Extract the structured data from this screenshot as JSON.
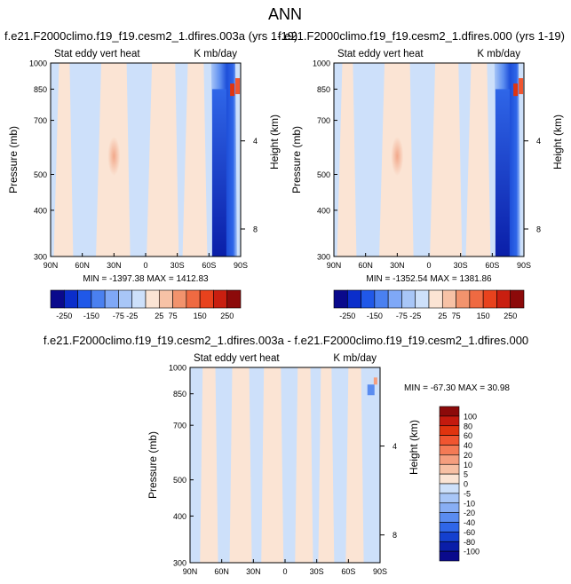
{
  "figure": {
    "title": "ANN"
  },
  "chart_data": [
    {
      "type": "heatmap",
      "title": "f.e21.F2000climo.f19_f19.cesm2_1.dfires.003a (yrs 1-19)",
      "left_subtitle": "Stat eddy vert heat",
      "right_subtitle": "K mb/day",
      "xlabel": "",
      "ylabel": "Pressure (mb)",
      "y2label": "Height (km)",
      "x_ticks": [
        "90N",
        "60N",
        "30N",
        "0",
        "30S",
        "60S",
        "90S"
      ],
      "y_ticks": [
        "300",
        "400",
        "500",
        "700",
        "850",
        "1000"
      ],
      "y2_ticks": [
        "8",
        "4"
      ],
      "x_range": [
        90,
        -90
      ],
      "y_range": [
        1000,
        300
      ],
      "y_scale": "log",
      "min": -1397.38,
      "max": 1412.83,
      "min_label": "MIN = -1397.38",
      "max_label": "MAX = 1412.83",
      "colorbar_orientation": "horizontal",
      "colorbar_labels": [
        "-250",
        "-150",
        "-75",
        "-25",
        "25",
        "75",
        "150",
        "250"
      ],
      "colorbar_colors": [
        "#0a0a8c",
        "#0b2ecb",
        "#2058e8",
        "#4a80f0",
        "#7fa8f7",
        "#a8c6f7",
        "#cde0fa",
        "#fbe4d4",
        "#f7c2a6",
        "#f2936d",
        "#ef6a42",
        "#e8421d",
        "#c91f10",
        "#8c0a0a"
      ],
      "field": {
        "background": "light-blue",
        "features": [
          "warm bands over tropics",
          "peak near 30N mid-troposphere",
          "strong cold core 60S-90S",
          "warm spot near 70S 850mb"
        ]
      }
    },
    {
      "type": "heatmap",
      "title": "f.e21.F2000climo.f19_f19.cesm2_1.dfires.000 (yrs 1-19)",
      "left_subtitle": "Stat eddy vert heat",
      "right_subtitle": "K mb/day",
      "xlabel": "",
      "ylabel": "Pressure (mb)",
      "y2label": "Height (km)",
      "x_ticks": [
        "90N",
        "60N",
        "30N",
        "0",
        "30S",
        "60S",
        "90S"
      ],
      "y_ticks": [
        "300",
        "400",
        "500",
        "700",
        "850",
        "1000"
      ],
      "y2_ticks": [
        "8",
        "4"
      ],
      "x_range": [
        90,
        -90
      ],
      "y_range": [
        1000,
        300
      ],
      "y_scale": "log",
      "min": -1352.54,
      "max": 1381.86,
      "min_label": "MIN = -1352.54",
      "max_label": "MAX = 1381.86",
      "colorbar_orientation": "horizontal",
      "colorbar_labels": [
        "-250",
        "-150",
        "-75",
        "-25",
        "25",
        "75",
        "150",
        "250"
      ],
      "colorbar_colors": [
        "#0a0a8c",
        "#0b2ecb",
        "#2058e8",
        "#4a80f0",
        "#7fa8f7",
        "#a8c6f7",
        "#cde0fa",
        "#fbe4d4",
        "#f7c2a6",
        "#f2936d",
        "#ef6a42",
        "#e8421d",
        "#c91f10",
        "#8c0a0a"
      ],
      "field": {
        "background": "light-blue",
        "features": [
          "warm bands over tropics",
          "peak near 30N mid-troposphere",
          "strong cold core 60S-90S",
          "warm spot near 70S 850mb"
        ]
      }
    },
    {
      "type": "heatmap",
      "title": "f.e21.F2000climo.f19_f19.cesm2_1.dfires.003a - f.e21.F2000climo.f19_f19.cesm2_1.dfires.000",
      "left_subtitle": "Stat eddy vert heat",
      "right_subtitle": "K mb/day",
      "xlabel": "",
      "ylabel": "Pressure (mb)",
      "y2label": "Height (km)",
      "x_ticks": [
        "90N",
        "60N",
        "30N",
        "0",
        "30S",
        "60S",
        "90S"
      ],
      "y_ticks": [
        "300",
        "400",
        "500",
        "700",
        "850",
        "1000"
      ],
      "y2_ticks": [
        "8",
        "4"
      ],
      "x_range": [
        90,
        -90
      ],
      "y_range": [
        1000,
        300
      ],
      "y_scale": "log",
      "min": -67.3,
      "max": 30.98,
      "min_label": "MIN = -67.30",
      "max_label": "MAX =  30.98",
      "colorbar_orientation": "vertical",
      "colorbar_labels": [
        "100",
        "80",
        "60",
        "40",
        "20",
        "10",
        "5",
        "0",
        "-5",
        "-10",
        "-20",
        "-40",
        "-60",
        "-80",
        "-100"
      ],
      "colorbar_colors": [
        "#8c0a0a",
        "#c41a0e",
        "#e0340f",
        "#f05530",
        "#f47a55",
        "#f59e7e",
        "#f7c0a4",
        "#fbe4d4",
        "#cde0fa",
        "#a8c6f7",
        "#88aef4",
        "#5a8cf0",
        "#2f66e8",
        "#1440cf",
        "#0a1ea8",
        "#0a0a8c"
      ],
      "field": {
        "background": "light-blue",
        "features": [
          "alternating warm and cool vertical bands",
          "small cold spot near 75S-85S at 900mb"
        ]
      }
    }
  ]
}
